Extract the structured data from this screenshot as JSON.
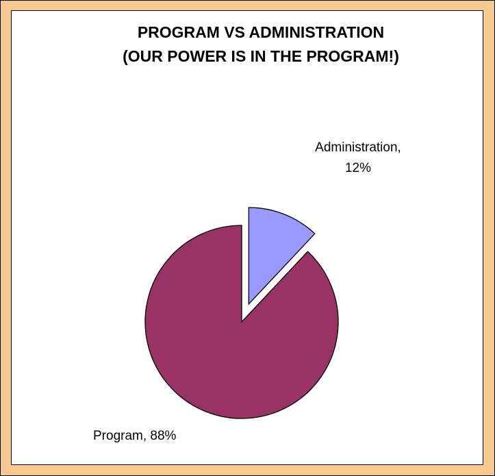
{
  "chart_data": {
    "type": "pie",
    "title_lines": [
      "PROGRAM VS ADMINISTRATION",
      "(OUR POWER IS IN THE PROGRAM!)"
    ],
    "slices": [
      {
        "name": "Administration",
        "value": 12,
        "percent_label": "12%",
        "label_lines": [
          "Administration,",
          "12%"
        ],
        "color": "#9999ff",
        "exploded": true
      },
      {
        "name": "Program",
        "value": 88,
        "percent_label": "88%",
        "label_lines": [
          "Program, 88%"
        ],
        "color": "#993366",
        "exploded": false
      }
    ],
    "start_angle_deg": 0,
    "direction": "clockwise",
    "legend": "none"
  },
  "colors": {
    "outer_background": "#f7c98f",
    "plot_background": "#ffffff",
    "slice_stroke": "#000000"
  }
}
